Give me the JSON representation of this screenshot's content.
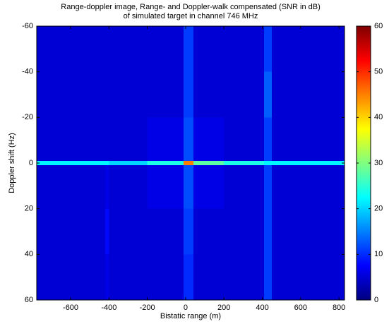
{
  "chart_data": {
    "type": "heatmap",
    "title": [
      "Range-doppler image, Range- and Doppler-walk compensated (SNR in dB)",
      "of simulated target in channel 746 MHz"
    ],
    "x_label": "Bistatic range (m)",
    "y_label": "Doppler shift (Hz)",
    "colormap": "jet",
    "x_edges": [
      -777,
      -600,
      -420,
      -400,
      -200,
      -10,
      40,
      200,
      410,
      450,
      600,
      829
    ],
    "y_edges": [
      -60,
      -40,
      -20,
      -1,
      1,
      20,
      40,
      60
    ],
    "z": [
      [
        5,
        5,
        5,
        5,
        5,
        11,
        5,
        5,
        11,
        5,
        5
      ],
      [
        5,
        5,
        5,
        5,
        5,
        11,
        5,
        5,
        13,
        5,
        5
      ],
      [
        5,
        5,
        5,
        5,
        6,
        12,
        6,
        5,
        11,
        5,
        5
      ],
      [
        22,
        22,
        22,
        20,
        24,
        45,
        28,
        24,
        22,
        22,
        22
      ],
      [
        5,
        5,
        6,
        5,
        6,
        12,
        6,
        5,
        11,
        5,
        5
      ],
      [
        5,
        5,
        8,
        5,
        5,
        11,
        5,
        5,
        11,
        5,
        5
      ],
      [
        5,
        5,
        6,
        5,
        5,
        10,
        5,
        5,
        11,
        5,
        5
      ]
    ],
    "xlim": [
      -777,
      829
    ],
    "ylim": [
      -60,
      60
    ],
    "y_reversed": true,
    "xticks": [
      -600,
      -400,
      -200,
      0,
      200,
      400,
      600,
      800
    ],
    "yticks": [
      -60,
      -40,
      -20,
      0,
      20,
      40,
      60
    ],
    "clim": [
      0,
      60
    ],
    "cticks": [
      0,
      10,
      20,
      30,
      40,
      50,
      60
    ]
  }
}
